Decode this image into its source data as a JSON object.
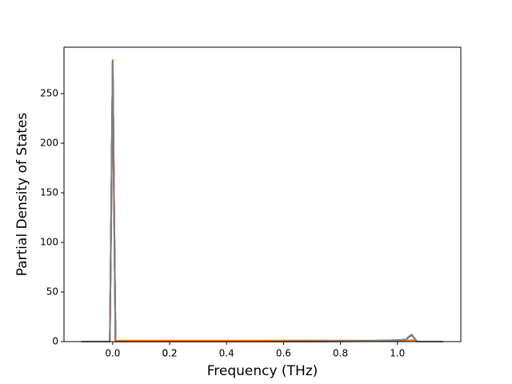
{
  "chart_data": {
    "type": "line",
    "xlabel": "Frequency (THz)",
    "ylabel": "Partial Density of States",
    "x": [
      -0.11,
      -0.02,
      -0.01,
      -0.005,
      0,
      0.005,
      0.01,
      0.02,
      0.1,
      0.5,
      0.85,
      0.95,
      1.0,
      1.03,
      1.04,
      1.05,
      1.06,
      1.07,
      1.16
    ],
    "series": [
      {
        "color": "#1f77b4",
        "values": [
          0,
          0,
          0,
          135,
          280,
          135,
          0,
          0,
          0,
          0,
          0.3,
          0.8,
          1.2,
          1.8,
          4.5,
          6.5,
          3,
          0,
          0
        ]
      },
      {
        "color": "#ff7f0e",
        "values": [
          0,
          0,
          0,
          130,
          284,
          130,
          0,
          1,
          1,
          1,
          1,
          1,
          1,
          1,
          1.2,
          1.5,
          1,
          0,
          0
        ]
      },
      {
        "color": "#d62728",
        "values": [
          0,
          0,
          0,
          138,
          283,
          138,
          0,
          0,
          0,
          0,
          0.4,
          0.9,
          1.3,
          1.9,
          4.8,
          6.8,
          3,
          0,
          0
        ]
      },
      {
        "color": "#8c564b",
        "values": [
          0,
          0,
          0,
          139,
          282,
          139,
          0,
          0,
          0,
          0,
          0.5,
          1,
          1.4,
          2,
          5,
          7,
          3,
          0,
          0
        ]
      },
      {
        "color": "#7f7f7f",
        "values": [
          0,
          0,
          0,
          140,
          283,
          140,
          0,
          0,
          0,
          0,
          0.5,
          1,
          1.5,
          2,
          5,
          7,
          3,
          0,
          0
        ]
      }
    ],
    "xlim": [
      -0.171,
      1.2226
    ],
    "ylim": [
      0,
      296.8
    ],
    "xticks": [
      {
        "value": 0,
        "label": "0.0"
      },
      0.2,
      0.4,
      0.6,
      0.8,
      {
        "value": 1,
        "label": "1.0"
      },
      0.2
    ],
    "yticks": [
      0,
      50,
      100,
      150,
      200,
      250
    ]
  }
}
